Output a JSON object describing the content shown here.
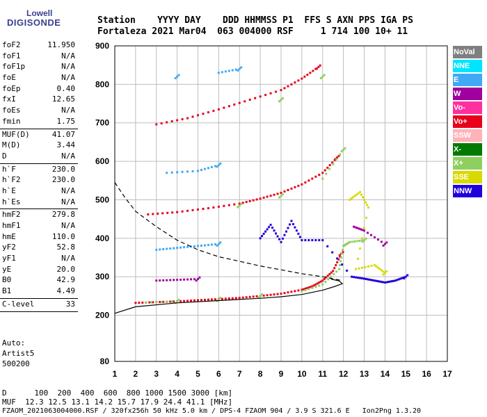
{
  "logo": {
    "line1": "Lowell",
    "line2": "DIGISONDE"
  },
  "header": {
    "line1": "Station    YYYY DAY    DDD HHMMSS P1  FFS S AXN PPS IGA PS",
    "line2": "Fortaleza 2021 Mar04  063 004000 RSF     1 714 100 10+ 11"
  },
  "params": [
    [
      {
        "n": "foF2",
        "v": "11.950"
      },
      {
        "n": "foF1",
        "v": "N/A"
      },
      {
        "n": "foF1p",
        "v": "N/A"
      },
      {
        "n": "foE",
        "v": "N/A"
      },
      {
        "n": "foEp",
        "v": "0.40"
      },
      {
        "n": "fxI",
        "v": "12.65"
      },
      {
        "n": "foEs",
        "v": "N/A"
      },
      {
        "n": "fmin",
        "v": "1.75"
      }
    ],
    [
      {
        "n": "MUF(D)",
        "v": "41.07"
      },
      {
        "n": "M(D)",
        "v": "3.44"
      },
      {
        "n": "D",
        "v": "N/A"
      }
    ],
    [
      {
        "n": "h`F",
        "v": "230.0"
      },
      {
        "n": "h`F2",
        "v": "230.0"
      },
      {
        "n": "h`E",
        "v": "N/A"
      },
      {
        "n": "h`Es",
        "v": "N/A"
      }
    ],
    [
      {
        "n": "hmF2",
        "v": "279.8"
      },
      {
        "n": "hmF1",
        "v": "N/A"
      },
      {
        "n": "hmE",
        "v": "110.0"
      },
      {
        "n": "yF2",
        "v": "52.8"
      },
      {
        "n": "yF1",
        "v": "N/A"
      },
      {
        "n": "yE",
        "v": "20.0"
      },
      {
        "n": "B0",
        "v": "42.9"
      },
      {
        "n": "B1",
        "v": "4.49"
      }
    ],
    [
      {
        "n": "C-level",
        "v": "33"
      }
    ]
  ],
  "notes": {
    "auto": "Auto:",
    "artist": "Artist5",
    "code": "500200"
  },
  "legend": [
    {
      "label": "NoVal",
      "color": "#7f7f7f"
    },
    {
      "label": "NNE",
      "color": "#00e5ff"
    },
    {
      "label": "E",
      "color": "#3fa9f5"
    },
    {
      "label": "W",
      "color": "#a0009f"
    },
    {
      "label": "Vo-",
      "color": "#ff2fa0"
    },
    {
      "label": "Vo+",
      "color": "#e8001c"
    },
    {
      "label": "SSW",
      "color": "#ffb3b8"
    },
    {
      "label": "X-",
      "color": "#007a00"
    },
    {
      "label": "X+",
      "color": "#8fcf5f"
    },
    {
      "label": "SSE",
      "color": "#d9d900"
    },
    {
      "label": "NNW",
      "color": "#2200dd"
    }
  ],
  "footer": {
    "line1": "D      100  200  400  600  800 1000 1500 3000 [km]",
    "line2": "MUF  12.3 12.5 13.1 14.2 15.7 17.9 24.4 41.1 [MHz]",
    "line3": "FZAOM_2021063004000.RSF / 320fx256h 50 kHz 5.0 km / DPS-4 FZAOM 904 / 3.9 S 321.6 E   Ion2Png 1.3.20"
  },
  "chart_data": {
    "type": "scatter",
    "x_range": [
      1,
      17
    ],
    "y_range": [
      80,
      900
    ],
    "x_ticks": [
      1,
      2,
      3,
      4,
      5,
      6,
      7,
      8,
      9,
      10,
      11,
      12,
      13,
      14,
      15,
      16,
      17
    ],
    "y_ticks": [
      80,
      200,
      300,
      400,
      500,
      600,
      700,
      800,
      900
    ],
    "grid": true,
    "series": [
      {
        "name": "Vo+",
        "color": "#e8001c",
        "points": [
          [
            2,
            232
          ],
          [
            3,
            234
          ],
          [
            4,
            236
          ],
          [
            5,
            239
          ],
          [
            6,
            242
          ],
          [
            7,
            245
          ],
          [
            8,
            250
          ],
          [
            9,
            256
          ],
          [
            10,
            266
          ],
          [
            10.5,
            275
          ],
          [
            11,
            290
          ],
          [
            11.5,
            315
          ],
          [
            11.9,
            360
          ],
          [
            2.6,
            462
          ],
          [
            4,
            468
          ],
          [
            5.5,
            478
          ],
          [
            7,
            490
          ],
          [
            8,
            503
          ],
          [
            9,
            518
          ],
          [
            10,
            540
          ],
          [
            11,
            570
          ],
          [
            11.7,
            610
          ],
          [
            3,
            696
          ],
          [
            4.5,
            712
          ],
          [
            6,
            735
          ],
          [
            7.5,
            760
          ],
          [
            9,
            785
          ],
          [
            10,
            815
          ],
          [
            10.8,
            845
          ]
        ]
      },
      {
        "name": "X+",
        "color": "#8fcf5f",
        "points": [
          [
            2.5,
            233
          ],
          [
            4,
            236
          ],
          [
            6,
            241
          ],
          [
            8,
            250
          ],
          [
            10,
            262
          ],
          [
            11,
            280
          ],
          [
            11.8,
            320
          ],
          [
            12,
            380
          ],
          [
            12.3,
            390
          ],
          [
            13,
            395
          ],
          [
            7,
            485
          ],
          [
            9,
            510
          ],
          [
            11,
            555
          ],
          [
            12,
            630
          ],
          [
            9,
            760
          ],
          [
            11,
            820
          ]
        ]
      },
      {
        "name": "NNW",
        "color": "#2200dd",
        "points": [
          [
            8,
            400
          ],
          [
            8.5,
            435
          ],
          [
            9,
            390
          ],
          [
            9.5,
            445
          ],
          [
            10,
            395
          ],
          [
            11,
            395
          ],
          [
            12.4,
            300
          ],
          [
            13,
            295
          ],
          [
            13.5,
            290
          ],
          [
            14,
            285
          ],
          [
            14.5,
            290
          ],
          [
            15,
            300
          ]
        ]
      },
      {
        "name": "E",
        "color": "#3fa9f5",
        "points": [
          [
            3,
            370
          ],
          [
            4,
            375
          ],
          [
            5,
            380
          ],
          [
            6,
            385
          ],
          [
            3.5,
            570
          ],
          [
            5,
            575
          ],
          [
            6,
            590
          ],
          [
            4,
            820
          ],
          [
            6,
            830
          ],
          [
            7,
            840
          ]
        ]
      },
      {
        "name": "W",
        "color": "#a0009f",
        "points": [
          [
            3,
            290
          ],
          [
            4,
            292
          ],
          [
            5,
            294
          ],
          [
            12.5,
            430
          ],
          [
            13,
            420
          ],
          [
            14,
            385
          ]
        ]
      },
      {
        "name": "SSE",
        "color": "#d9d900",
        "points": [
          [
            12.3,
            500
          ],
          [
            12.8,
            520
          ],
          [
            13.2,
            480
          ],
          [
            12.6,
            320
          ],
          [
            13.5,
            330
          ],
          [
            14,
            310
          ]
        ]
      }
    ],
    "curves": [
      {
        "name": "profile-solid",
        "style": "solid",
        "points": [
          [
            1,
            205
          ],
          [
            2,
            222
          ],
          [
            4,
            232
          ],
          [
            6,
            238
          ],
          [
            8,
            244
          ],
          [
            9,
            248
          ],
          [
            10,
            254
          ],
          [
            11,
            265
          ],
          [
            11.6,
            275
          ],
          [
            11.95,
            282
          ],
          [
            11.8,
            289
          ],
          [
            11.4,
            294
          ]
        ]
      },
      {
        "name": "profile-dashed",
        "style": "dashed",
        "points": [
          [
            1,
            545
          ],
          [
            1.5,
            505
          ],
          [
            2,
            470
          ],
          [
            3,
            430
          ],
          [
            4,
            395
          ],
          [
            5,
            370
          ],
          [
            6,
            352
          ],
          [
            7,
            340
          ],
          [
            8,
            328
          ],
          [
            9,
            318
          ],
          [
            10,
            308
          ],
          [
            11,
            300
          ],
          [
            11.95,
            290
          ]
        ]
      }
    ]
  }
}
